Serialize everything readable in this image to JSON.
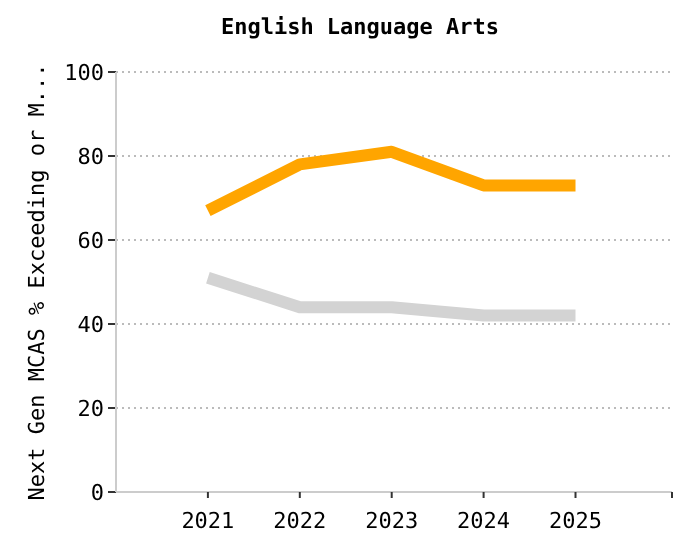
{
  "chart_data": {
    "type": "line",
    "title": "English Language Arts",
    "ylabel": "Next Gen MCAS % Exceeding or M...",
    "categories": [
      "2021",
      "2022",
      "2023",
      "2024",
      "2025"
    ],
    "series": [
      {
        "color": "#ffa500",
        "values": [
          67,
          78,
          81,
          73,
          73
        ]
      },
      {
        "color": "#d3d3d3",
        "values": [
          51,
          44,
          44,
          42,
          42
        ]
      }
    ],
    "ylim": [
      0,
      100
    ],
    "yticks": [
      0,
      20,
      40,
      60,
      80,
      100
    ],
    "grid": "y",
    "marker": "none",
    "line_style": "solid"
  }
}
